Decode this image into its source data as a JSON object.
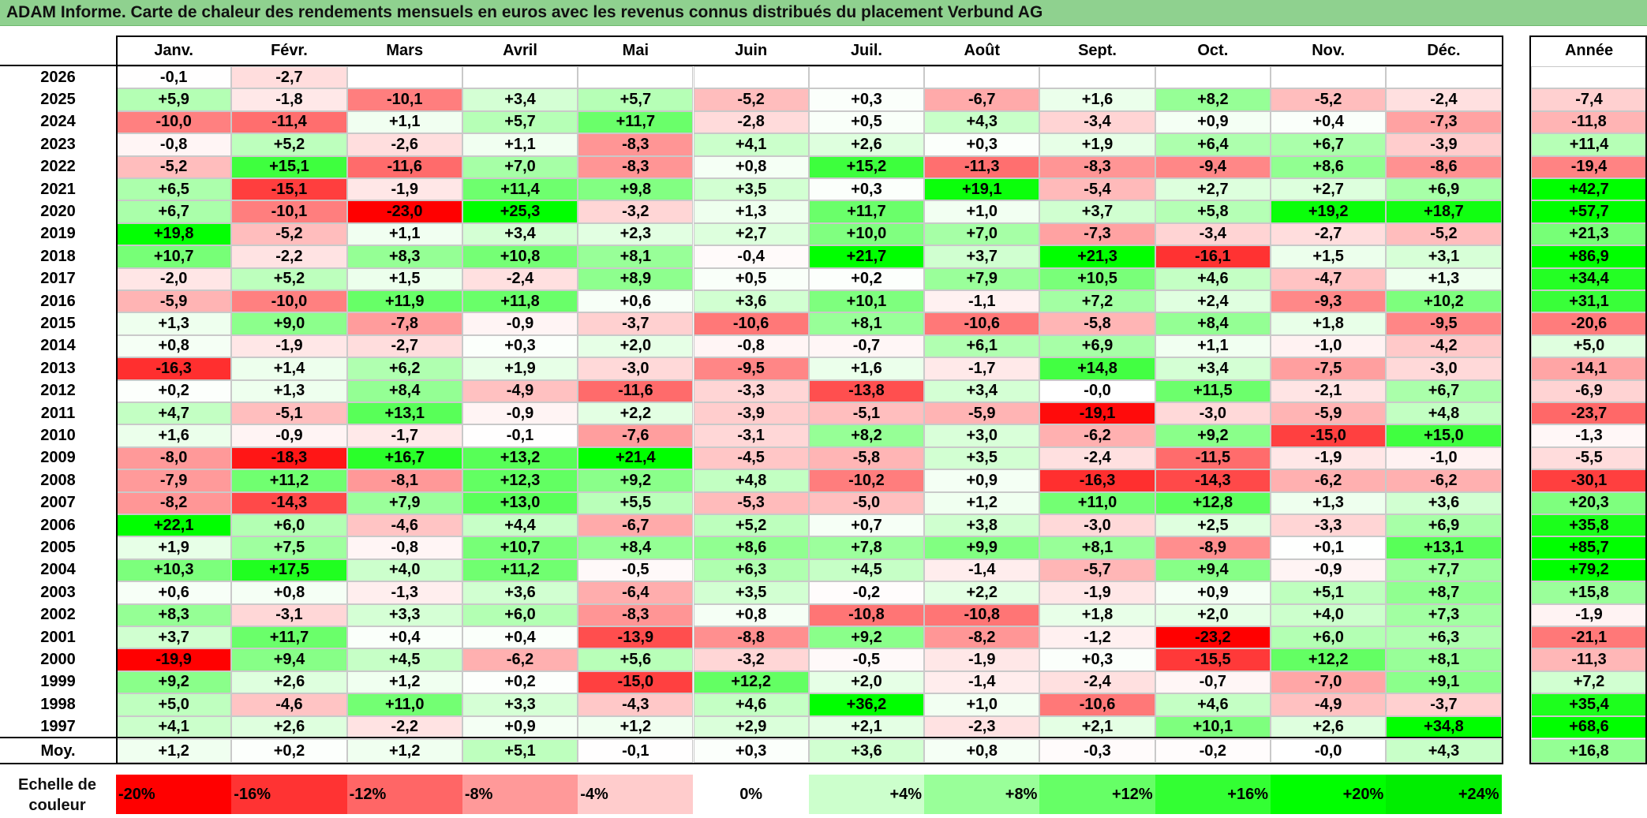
{
  "title": "ADAM Informe. Carte de chaleur des rendements mensuels en euros avec les revenus connus distribués du placement Verbund AG",
  "chart_data": {
    "type": "heatmap",
    "months": [
      "Janv.",
      "Févr.",
      "Mars",
      "Avril",
      "Mai",
      "Juin",
      "Juil.",
      "Août",
      "Sept.",
      "Oct.",
      "Nov.",
      "Déc."
    ],
    "annual_label": "Année",
    "rows": [
      {
        "year": "2026",
        "values": [
          "-0,1",
          "-2,7",
          "",
          "",
          "",
          "",
          "",
          "",
          "",
          "",
          "",
          ""
        ],
        "annual": ""
      },
      {
        "year": "2025",
        "values": [
          "+5,9",
          "-1,8",
          "-10,1",
          "+3,4",
          "+5,7",
          "-5,2",
          "+0,3",
          "-6,7",
          "+1,6",
          "+8,2",
          "-5,2",
          "-2,4"
        ],
        "annual": "-7,4"
      },
      {
        "year": "2024",
        "values": [
          "-10,0",
          "-11,4",
          "+1,1",
          "+5,7",
          "+11,7",
          "-2,8",
          "+0,5",
          "+4,3",
          "-3,4",
          "+0,9",
          "+0,4",
          "-7,3"
        ],
        "annual": "-11,8"
      },
      {
        "year": "2023",
        "values": [
          "-0,8",
          "+5,2",
          "-2,6",
          "+1,1",
          "-8,3",
          "+4,1",
          "+2,6",
          "+0,3",
          "+1,9",
          "+6,4",
          "+6,7",
          "-3,9"
        ],
        "annual": "+11,4"
      },
      {
        "year": "2022",
        "values": [
          "-5,2",
          "+15,1",
          "-11,6",
          "+7,0",
          "-8,3",
          "+0,8",
          "+15,2",
          "-11,3",
          "-8,3",
          "-9,4",
          "+8,6",
          "-8,6"
        ],
        "annual": "-19,4"
      },
      {
        "year": "2021",
        "values": [
          "+6,5",
          "-15,1",
          "-1,9",
          "+11,4",
          "+9,8",
          "+3,5",
          "+0,3",
          "+19,1",
          "-5,4",
          "+2,7",
          "+2,7",
          "+6,9"
        ],
        "annual": "+42,7"
      },
      {
        "year": "2020",
        "values": [
          "+6,7",
          "-10,1",
          "-23,0",
          "+25,3",
          "-3,2",
          "+1,3",
          "+11,7",
          "+1,0",
          "+3,7",
          "+5,8",
          "+19,2",
          "+18,7"
        ],
        "annual": "+57,7"
      },
      {
        "year": "2019",
        "values": [
          "+19,8",
          "-5,2",
          "+1,1",
          "+3,4",
          "+2,3",
          "+2,7",
          "+10,0",
          "+7,0",
          "-7,3",
          "-3,4",
          "-2,7",
          "-5,2"
        ],
        "annual": "+21,3"
      },
      {
        "year": "2018",
        "values": [
          "+10,7",
          "-2,2",
          "+8,3",
          "+10,8",
          "+8,1",
          "-0,4",
          "+21,7",
          "+3,7",
          "+21,3",
          "-16,1",
          "+1,5",
          "+3,1"
        ],
        "annual": "+86,9"
      },
      {
        "year": "2017",
        "values": [
          "-2,0",
          "+5,2",
          "+1,5",
          "-2,4",
          "+8,9",
          "+0,5",
          "+0,2",
          "+7,9",
          "+10,5",
          "+4,6",
          "-4,7",
          "+1,3"
        ],
        "annual": "+34,4"
      },
      {
        "year": "2016",
        "values": [
          "-5,9",
          "-10,0",
          "+11,9",
          "+11,8",
          "+0,6",
          "+3,6",
          "+10,1",
          "-1,1",
          "+7,2",
          "+2,4",
          "-9,3",
          "+10,2"
        ],
        "annual": "+31,1"
      },
      {
        "year": "2015",
        "values": [
          "+1,3",
          "+9,0",
          "-7,8",
          "-0,9",
          "-3,7",
          "-10,6",
          "+8,1",
          "-10,6",
          "-5,8",
          "+8,4",
          "+1,8",
          "-9,5"
        ],
        "annual": "-20,6"
      },
      {
        "year": "2014",
        "values": [
          "+0,8",
          "-1,9",
          "-2,7",
          "+0,3",
          "+2,0",
          "-0,8",
          "-0,7",
          "+6,1",
          "+6,9",
          "+1,1",
          "-1,0",
          "-4,2"
        ],
        "annual": "+5,0"
      },
      {
        "year": "2013",
        "values": [
          "-16,3",
          "+1,4",
          "+6,2",
          "+1,9",
          "-3,0",
          "-9,5",
          "+1,6",
          "-1,7",
          "+14,8",
          "+3,4",
          "-7,5",
          "-3,0"
        ],
        "annual": "-14,1"
      },
      {
        "year": "2012",
        "values": [
          "+0,2",
          "+1,3",
          "+8,4",
          "-4,9",
          "-11,6",
          "-3,3",
          "-13,8",
          "+3,4",
          "-0,0",
          "+11,5",
          "-2,1",
          "+6,7"
        ],
        "annual": "-6,9"
      },
      {
        "year": "2011",
        "values": [
          "+4,7",
          "-5,1",
          "+13,1",
          "-0,9",
          "+2,2",
          "-3,9",
          "-5,1",
          "-5,9",
          "-19,1",
          "-3,0",
          "-5,9",
          "+4,8"
        ],
        "annual": "-23,7"
      },
      {
        "year": "2010",
        "values": [
          "+1,6",
          "-0,9",
          "-1,7",
          "-0,1",
          "-7,6",
          "-3,1",
          "+8,2",
          "+3,0",
          "-6,2",
          "+9,2",
          "-15,0",
          "+15,0"
        ],
        "annual": "-1,3"
      },
      {
        "year": "2009",
        "values": [
          "-8,0",
          "-18,3",
          "+16,7",
          "+13,2",
          "+21,4",
          "-4,5",
          "-5,8",
          "+3,5",
          "-2,4",
          "-11,5",
          "-1,9",
          "-1,0"
        ],
        "annual": "-5,5"
      },
      {
        "year": "2008",
        "values": [
          "-7,9",
          "+11,2",
          "-8,1",
          "+12,3",
          "+9,2",
          "+4,8",
          "-10,2",
          "+0,9",
          "-16,3",
          "-14,3",
          "-6,2",
          "-6,2"
        ],
        "annual": "-30,1"
      },
      {
        "year": "2007",
        "values": [
          "-8,2",
          "-14,3",
          "+7,9",
          "+13,0",
          "+5,5",
          "-5,3",
          "-5,0",
          "+1,2",
          "+11,0",
          "+12,8",
          "+1,3",
          "+3,6"
        ],
        "annual": "+20,3"
      },
      {
        "year": "2006",
        "values": [
          "+22,1",
          "+6,0",
          "-4,6",
          "+4,4",
          "-6,7",
          "+5,2",
          "+0,7",
          "+3,8",
          "-3,0",
          "+2,5",
          "-3,3",
          "+6,9"
        ],
        "annual": "+35,8"
      },
      {
        "year": "2005",
        "values": [
          "+1,9",
          "+7,5",
          "-0,8",
          "+10,7",
          "+8,4",
          "+8,6",
          "+7,8",
          "+9,9",
          "+8,1",
          "-8,9",
          "+0,1",
          "+13,1"
        ],
        "annual": "+85,7"
      },
      {
        "year": "2004",
        "values": [
          "+10,3",
          "+17,5",
          "+4,0",
          "+11,2",
          "-0,5",
          "+6,3",
          "+4,5",
          "-1,4",
          "-5,7",
          "+9,4",
          "-0,9",
          "+7,7"
        ],
        "annual": "+79,2"
      },
      {
        "year": "2003",
        "values": [
          "+0,6",
          "+0,8",
          "-1,3",
          "+3,6",
          "-6,4",
          "+3,5",
          "-0,2",
          "+2,2",
          "-1,9",
          "+0,9",
          "+5,1",
          "+8,7"
        ],
        "annual": "+15,8"
      },
      {
        "year": "2002",
        "values": [
          "+8,3",
          "-3,1",
          "+3,3",
          "+6,0",
          "-8,3",
          "+0,8",
          "-10,8",
          "-10,8",
          "+1,8",
          "+2,0",
          "+4,0",
          "+7,3"
        ],
        "annual": "-1,9"
      },
      {
        "year": "2001",
        "values": [
          "+3,7",
          "+11,7",
          "+0,4",
          "+0,4",
          "-13,9",
          "-8,8",
          "+9,2",
          "-8,2",
          "-1,2",
          "-23,2",
          "+6,0",
          "+6,3"
        ],
        "annual": "-21,1"
      },
      {
        "year": "2000",
        "values": [
          "-19,9",
          "+9,4",
          "+4,5",
          "-6,2",
          "+5,6",
          "-3,2",
          "-0,5",
          "-1,9",
          "+0,3",
          "-15,5",
          "+12,2",
          "+8,1"
        ],
        "annual": "-11,3"
      },
      {
        "year": "1999",
        "values": [
          "+9,2",
          "+2,6",
          "+1,2",
          "+0,2",
          "-15,0",
          "+12,2",
          "+2,0",
          "-1,4",
          "-2,4",
          "-0,7",
          "-7,0",
          "+9,1"
        ],
        "annual": "+7,2"
      },
      {
        "year": "1998",
        "values": [
          "+5,0",
          "-4,6",
          "+11,0",
          "+3,3",
          "-4,3",
          "+4,6",
          "+36,2",
          "+1,0",
          "-10,6",
          "+4,6",
          "-4,9",
          "-3,7"
        ],
        "annual": "+35,4"
      },
      {
        "year": "1997",
        "values": [
          "+4,1",
          "+2,6",
          "-2,2",
          "+0,9",
          "+1,2",
          "+2,9",
          "+2,1",
          "-2,3",
          "+2,1",
          "+10,1",
          "+2,6",
          "+34,8"
        ],
        "annual": "+68,6"
      }
    ],
    "average": {
      "label": "Moy.",
      "values": [
        "+1,2",
        "+0,2",
        "+1,2",
        "+5,1",
        "-0,1",
        "+0,3",
        "+3,6",
        "+0,8",
        "-0,3",
        "-0,2",
        "-0,0",
        "+4,3"
      ],
      "annual": "+16,8"
    },
    "color_scale": {
      "label": "Echelle de couleur",
      "stops": [
        {
          "label": "-20%",
          "value": -20,
          "color": "#ff0000"
        },
        {
          "label": "-16%",
          "value": -16,
          "color": "#ff3333"
        },
        {
          "label": "-12%",
          "value": -12,
          "color": "#ff6666"
        },
        {
          "label": "-8%",
          "value": -8,
          "color": "#ff9999"
        },
        {
          "label": "-4%",
          "value": -4,
          "color": "#ffcccc"
        },
        {
          "label": "0%",
          "value": 0,
          "color": "#ffffff"
        },
        {
          "label": "+4%",
          "value": 4,
          "color": "#ccffcc"
        },
        {
          "label": "+8%",
          "value": 8,
          "color": "#99ff99"
        },
        {
          "label": "+12%",
          "value": 12,
          "color": "#66ff66"
        },
        {
          "label": "+16%",
          "value": 16,
          "color": "#33ff33"
        },
        {
          "label": "+20%",
          "value": 20,
          "color": "#00ff00"
        },
        {
          "label": "+24%",
          "value": 24,
          "color": "#00ee00"
        }
      ]
    }
  },
  "colors": {
    "title_bar": "#8fd18f",
    "negative_max": "#ff0000",
    "positive_max": "#00ff00",
    "neutral": "#ffffff"
  }
}
